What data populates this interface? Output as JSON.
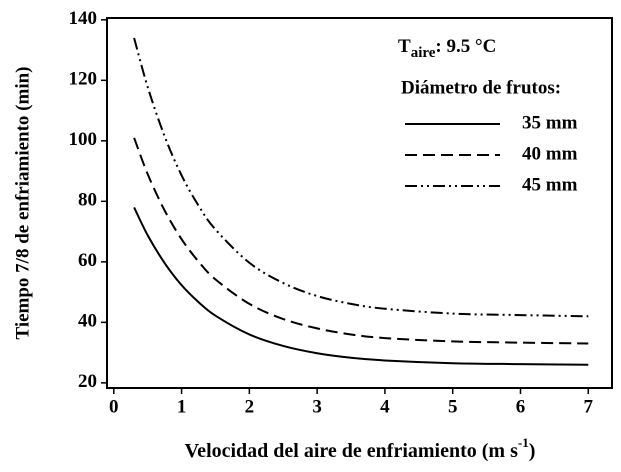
{
  "chart_data": {
    "type": "line",
    "x_label": {
      "main": "Velocidad del aire de enfriamiento (m s",
      "sup": "-1",
      "end": ")"
    },
    "y_label": "Tiempo 7/8 de enfriamiento (min)",
    "annotation": {
      "main": "T",
      "sub": "aire",
      "rest": ": 9.5 °C"
    },
    "legend_title": "Diámetro de frutos:",
    "x": [
      0.3,
      0.5,
      0.75,
      1,
      1.25,
      1.5,
      2,
      2.5,
      3,
      3.5,
      4,
      5,
      6,
      7
    ],
    "series": [
      {
        "name": "35 mm",
        "color": "#000000",
        "dash": "solid",
        "values": [
          78,
          68.8,
          59.6,
          52.3,
          46.7,
          42.2,
          36,
          32.2,
          29.8,
          28.3,
          27.4,
          26.5,
          26.2,
          26
        ]
      },
      {
        "name": "40 mm",
        "color": "#000000",
        "dash": "dashed",
        "values": [
          101,
          89,
          77,
          67.5,
          60.1,
          54.2,
          46.1,
          41.1,
          38,
          36,
          34.8,
          33.7,
          33.3,
          33
        ]
      },
      {
        "name": "45 mm",
        "color": "#000000",
        "dash": "dashdotdot",
        "values": [
          134,
          117.8,
          101.5,
          88.6,
          78.6,
          70.7,
          59.7,
          53,
          48.7,
          46.1,
          44.5,
          42.9,
          42.4,
          42
        ]
      }
    ],
    "xlim": [
      -0.1,
      7.35
    ],
    "ylim": [
      18.3,
      140.6
    ],
    "xticks": [
      0,
      1,
      2,
      3,
      4,
      5,
      6,
      7
    ],
    "yticks": [
      20,
      40,
      60,
      80,
      100,
      120,
      140
    ],
    "grid": false
  }
}
